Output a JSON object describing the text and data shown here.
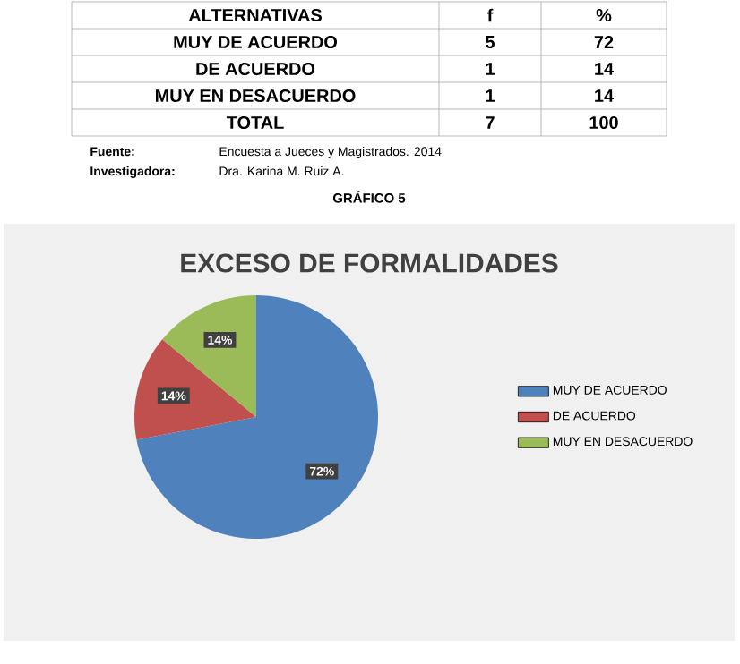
{
  "chart_data": {
    "type": "pie",
    "title": "EXCESO DE FORMALIDADES",
    "categories": [
      "MUY DE ACUERDO",
      "DE ACUERDO",
      "MUY EN DESACUERDO"
    ],
    "values": [
      72,
      14,
      14
    ],
    "colors": [
      "#4f81bd",
      "#c0504d",
      "#9bbb59"
    ],
    "value_labels": [
      "72%",
      "14%",
      "14%"
    ],
    "legend": "right",
    "annotations": [
      "ALTERNATIVAS",
      "f",
      "%",
      "MUY DE ACUERDO",
      "5",
      "72",
      "DE ACUERDO",
      "1",
      "14",
      "MUY EN DESACUERDO",
      "1",
      "14",
      "TOTAL",
      "7",
      "100",
      "Fuente:",
      "Encuesta a Jueces y Magistrados. 2014",
      "Investigadora:",
      "Dra. Karina M. Ruiz A.",
      "GRÁFICO 5"
    ]
  }
}
